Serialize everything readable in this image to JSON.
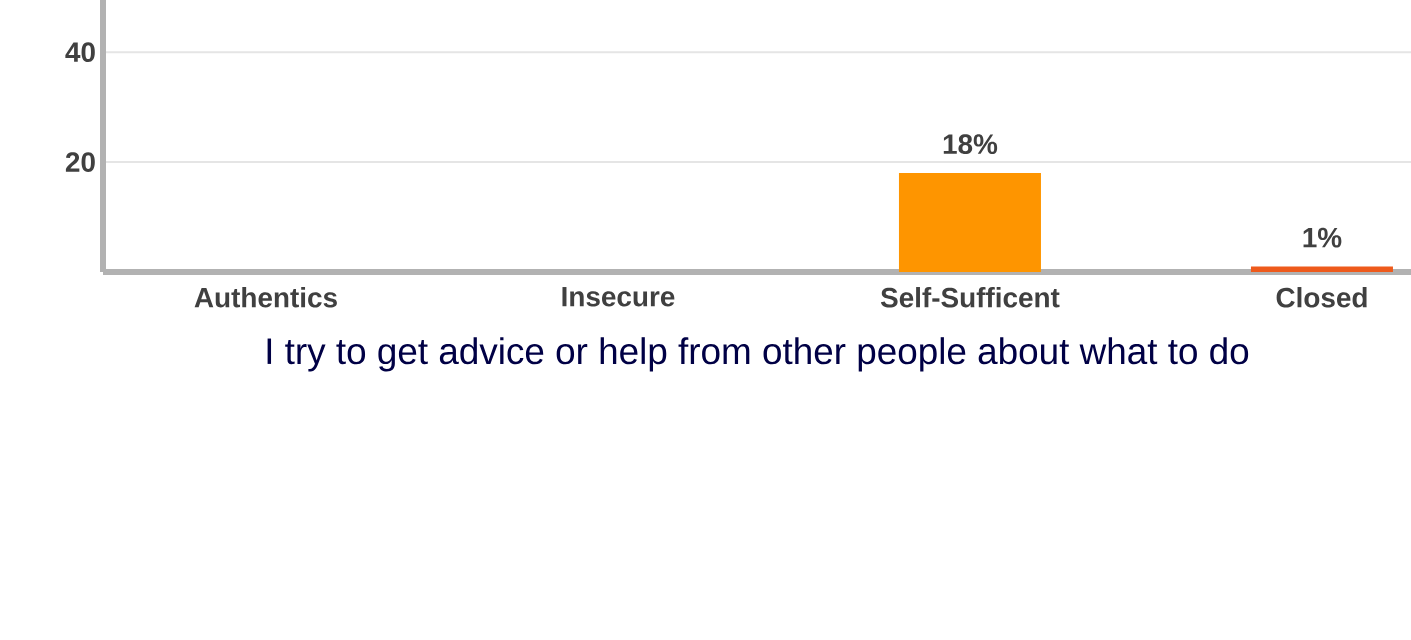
{
  "chart_data": {
    "type": "bar",
    "xlabel": "I try to get advice or help from other people about what to do",
    "categories": [
      "Authentics",
      "Insecure",
      "Self-Sufficent",
      "Closed"
    ],
    "values": [
      null,
      null,
      18,
      1
    ],
    "colors": [
      "#0f5d9f",
      "#2397cf",
      "#fe9500",
      "#ee5a1c"
    ],
    "value_labels": [
      null,
      null,
      "18%",
      "1%"
    ],
    "ylim": [
      0,
      49.5
    ],
    "yticks": [
      20,
      40
    ],
    "grid": "y"
  }
}
